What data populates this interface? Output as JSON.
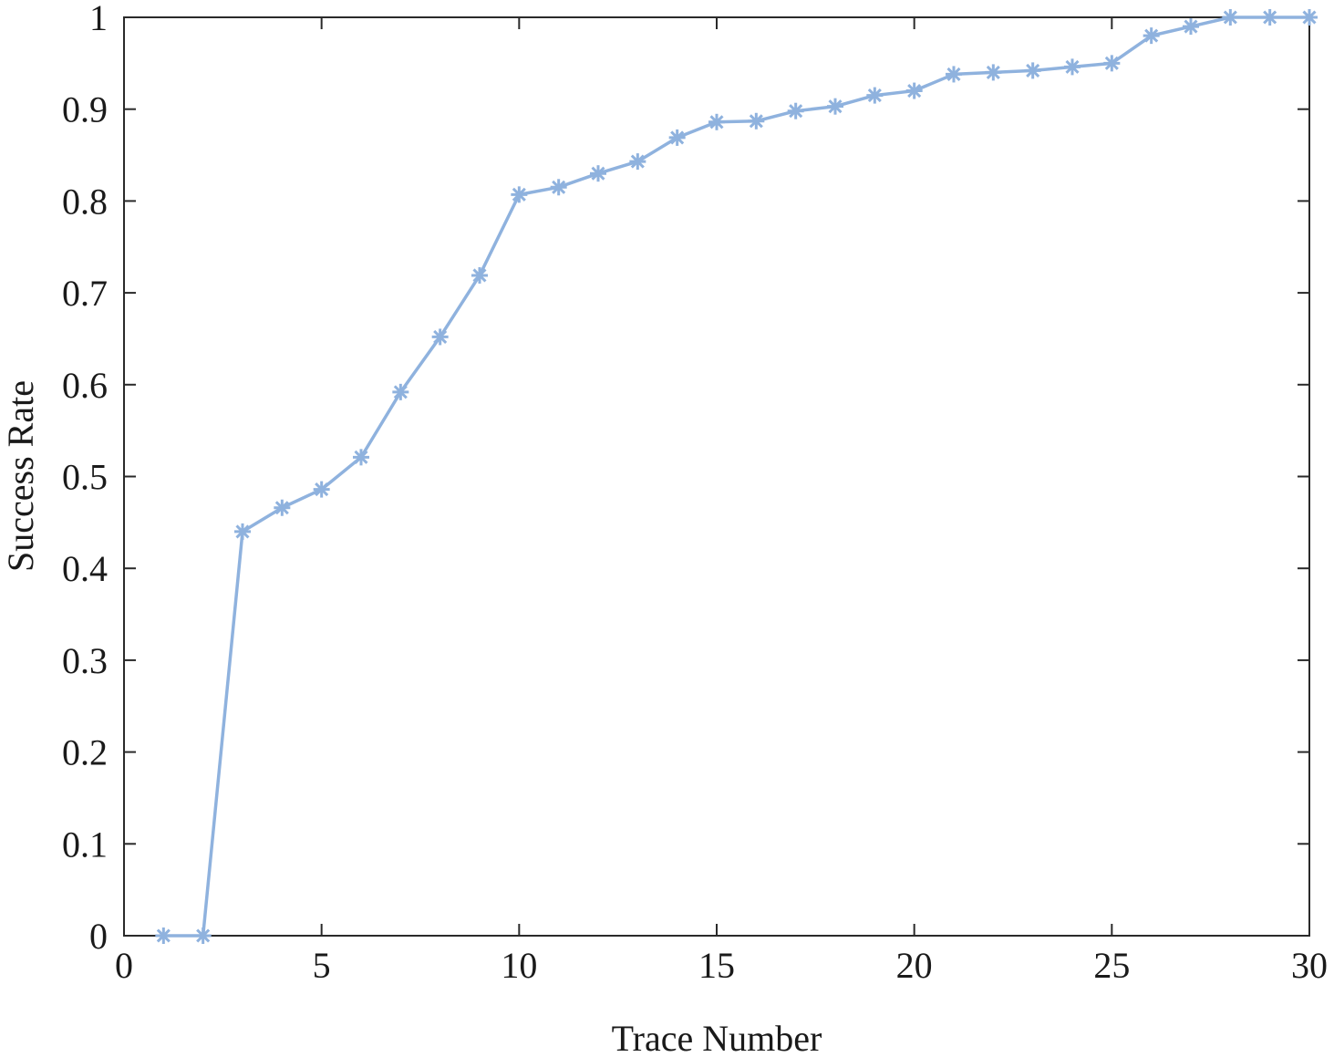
{
  "chart_data": {
    "type": "line",
    "title": "",
    "xlabel": "Trace Number",
    "ylabel": "Success Rate",
    "xlim": [
      0,
      30
    ],
    "ylim": [
      0,
      1
    ],
    "x_ticks": [
      0,
      5,
      10,
      15,
      20,
      25,
      30
    ],
    "x_tick_labels": [
      "0",
      "5",
      "10",
      "15",
      "20",
      "25",
      "30"
    ],
    "y_ticks": [
      0,
      0.1,
      0.2,
      0.3,
      0.4,
      0.5,
      0.6,
      0.7,
      0.8,
      0.9,
      1
    ],
    "y_tick_labels": [
      "0",
      "0.1",
      "0.2",
      "0.3",
      "0.4",
      "0.5",
      "0.6",
      "0.7",
      "0.8",
      "0.9",
      "1"
    ],
    "grid": false,
    "legend": "none",
    "marker": "asterisk",
    "series": [
      {
        "color": "#8fb2de",
        "x": [
          1,
          2,
          3,
          4,
          5,
          6,
          7,
          8,
          9,
          10,
          11,
          12,
          13,
          14,
          15,
          16,
          17,
          18,
          19,
          20,
          21,
          22,
          23,
          24,
          25,
          26,
          27,
          28,
          29,
          30
        ],
        "y": [
          0,
          0,
          0.44,
          0.466,
          0.486,
          0.521,
          0.592,
          0.652,
          0.719,
          0.807,
          0.815,
          0.83,
          0.843,
          0.869,
          0.886,
          0.887,
          0.898,
          0.903,
          0.915,
          0.92,
          0.938,
          0.94,
          0.942,
          0.946,
          0.95,
          0.98,
          0.99,
          1,
          1,
          1
        ]
      }
    ]
  }
}
